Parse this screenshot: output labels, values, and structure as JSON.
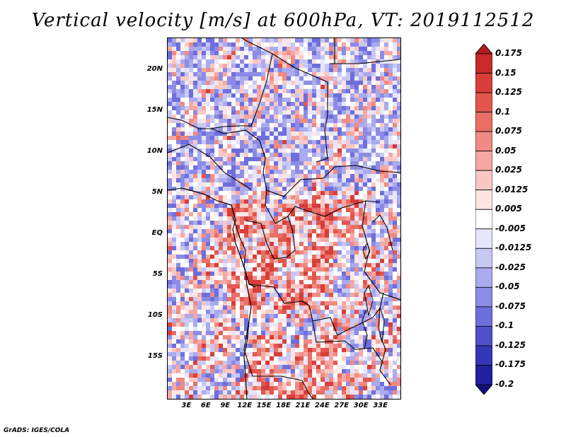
{
  "title": "Vertical velocity [m/s] at 600hPa, VT: 2019112512",
  "credit": "GrADS: IGES/COLA",
  "map": {
    "lon_range": [
      0,
      36
    ],
    "lat_range": [
      -20,
      24
    ],
    "y_ticks": [
      "20N",
      "15N",
      "10N",
      "5N",
      "EQ",
      "5S",
      "10S",
      "15S"
    ],
    "y_tick_values": [
      20,
      15,
      10,
      5,
      0,
      -5,
      -10,
      -15
    ],
    "x_ticks": [
      "3E",
      "6E",
      "9E",
      "12E",
      "15E",
      "18E",
      "21E",
      "24E",
      "27E",
      "30E",
      "33E"
    ],
    "x_tick_values": [
      3,
      6,
      9,
      12,
      15,
      18,
      21,
      24,
      27,
      30,
      33
    ]
  },
  "colorbar": {
    "labels": [
      "0.175",
      "0.15",
      "0.125",
      "0.1",
      "0.075",
      "0.05",
      "0.025",
      "0.0125",
      "0.005",
      "-0.005",
      "-0.0125",
      "-0.025",
      "-0.05",
      "-0.075",
      "-0.1",
      "-0.125",
      "-0.175",
      "-0.2"
    ],
    "colors": [
      "#b5191d",
      "#c82a2a",
      "#d83e3a",
      "#e2564e",
      "#ea6e66",
      "#f08a82",
      "#f5a8a3",
      "#f9c8c5",
      "#fce6e4",
      "#ffffff",
      "#e6e6fb",
      "#c8c8f4",
      "#aaaaee",
      "#8c8ce6",
      "#6e6edc",
      "#5050cc",
      "#3535b8",
      "#2020a0",
      "#10107e"
    ]
  }
}
